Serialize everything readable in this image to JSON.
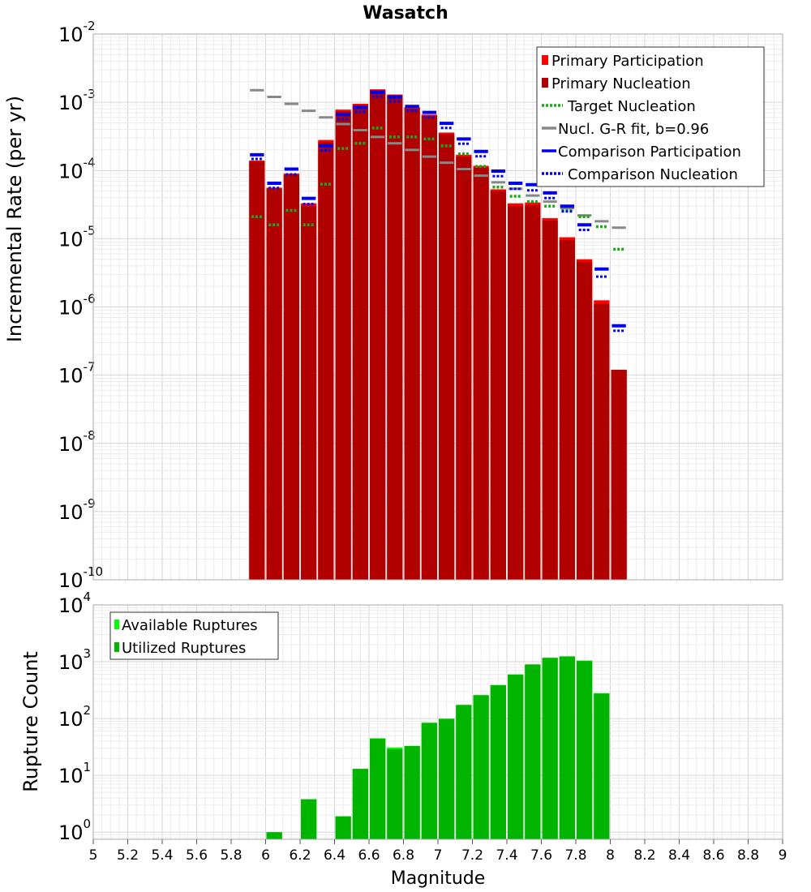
{
  "title": "Wasatch",
  "xlabel": "Magnitude",
  "colors": {
    "primary_participation": "#ff0000",
    "primary_nucleation": "#b00000",
    "target_nucleation": "#1aaa1a",
    "gr_fit": "#888888",
    "gr_fit_inner": "#222222",
    "comparison": "#0000ee",
    "available": "#00ff00",
    "utilized": "#00b400"
  },
  "x_axis": {
    "xlim": [
      5,
      9
    ],
    "ticks": [
      "5",
      "5.2",
      "5.4",
      "5.6",
      "5.8",
      "6",
      "6.2",
      "6.4",
      "6.6",
      "6.8",
      "7",
      "7.2",
      "7.4",
      "7.6",
      "7.8",
      "8",
      "8.2",
      "8.4",
      "8.6",
      "8.8",
      "9"
    ]
  },
  "chart_data": [
    {
      "type": "bar",
      "ylabel": "Incremental Rate (per yr)",
      "yscale": "log",
      "ylim": [
        1e-10,
        0.01
      ],
      "y_ticks": [
        {
          "base": "10",
          "exp": "-10"
        },
        {
          "base": "10",
          "exp": "-9"
        },
        {
          "base": "10",
          "exp": "-8"
        },
        {
          "base": "10",
          "exp": "-7"
        },
        {
          "base": "10",
          "exp": "-6"
        },
        {
          "base": "10",
          "exp": "-5"
        },
        {
          "base": "10",
          "exp": "-4"
        },
        {
          "base": "10",
          "exp": "-3"
        },
        {
          "base": "10",
          "exp": "-2"
        }
      ],
      "legend": [
        {
          "label": "Primary Participation",
          "key": "primary_participation",
          "style": "box"
        },
        {
          "label": "Primary Nucleation",
          "key": "primary_nucleation",
          "style": "box"
        },
        {
          "label": "Target Nucleation",
          "key": "target_nucleation",
          "style": "dotted"
        },
        {
          "label": "Nucl. G-R fit, b=0.96",
          "key": "gr_fit",
          "style": "solid"
        },
        {
          "label": "Comparison Participation",
          "key": "comparison",
          "style": "solid"
        },
        {
          "label": "Comparison Nucleation",
          "key": "comparison",
          "style": "dotted"
        }
      ],
      "bin_width": 0.1,
      "x": [
        5.95,
        6.05,
        6.15,
        6.25,
        6.35,
        6.45,
        6.55,
        6.65,
        6.75,
        6.85,
        6.95,
        7.05,
        7.15,
        7.25,
        7.35,
        7.45,
        7.55,
        7.65,
        7.75,
        7.85,
        7.95,
        8.05
      ],
      "series": [
        {
          "name": "Primary Participation",
          "values": [
            0.00014,
            5.6e-05,
            9e-05,
            3.3e-05,
            0.00028,
            0.00078,
            0.00095,
            0.00155,
            0.0013,
            0.00085,
            0.00066,
            0.00036,
            0.00017,
            0.000117,
            5.3e-05,
            3.3e-05,
            3.4e-05,
            2e-05,
            1.05e-05,
            5e-06,
            1.25e-06,
            1.2e-07
          ]
        },
        {
          "name": "Primary Nucleation",
          "values": [
            0.000135,
            5.4e-05,
            8.6e-05,
            3e-05,
            0.00026,
            0.00073,
            0.0009,
            0.0015,
            0.00125,
            0.00081,
            0.00063,
            0.00034,
            0.00016,
            0.00011,
            5e-05,
            3e-05,
            3.1e-05,
            1.85e-05,
            9.5e-06,
            4.6e-06,
            1.1e-06,
            1.2e-07
          ]
        },
        {
          "name": "Target Nucleation",
          "values": [
            2.1e-05,
            1.6e-05,
            2.6e-05,
            1.6e-05,
            6.3e-05,
            0.00021,
            0.00025,
            0.00042,
            0.00031,
            0.00031,
            0.00029,
            0.00023,
            0.000175,
            0.000115,
            5.7e-05,
            4.2e-05,
            3.5e-05,
            3e-05,
            2.6e-05,
            2.1e-05,
            1.5e-05,
            7e-06
          ]
        },
        {
          "name": "Nucl. G-R fit, b=0.96",
          "values": [
            0.0015,
            0.0012,
            0.00095,
            0.00075,
            0.0006,
            0.00048,
            0.00039,
            0.00031,
            0.00025,
            0.0002,
            0.00016,
            0.00013,
            0.000105,
            8.4e-05,
            6.7e-05,
            5.4e-05,
            4.3e-05,
            3.5e-05,
            2.8e-05,
            2.2e-05,
            1.8e-05,
            1.45e-05
          ]
        },
        {
          "name": "Comparison Participation",
          "values": [
            0.00017,
            6.5e-05,
            0.000105,
            3.9e-05,
            0.00023,
            0.00066,
            0.00084,
            0.0014,
            0.0012,
            0.00087,
            0.00071,
            0.00049,
            0.00029,
            0.00019,
            9.8e-05,
            6.5e-05,
            6.2e-05,
            4.7e-05,
            3e-05,
            1.6e-05,
            3.6e-06,
            5.3e-07
          ]
        },
        {
          "name": "Comparison Nucleation",
          "values": [
            0.000165,
            6.2e-05,
            9.8e-05,
            3.6e-05,
            0.00022,
            0.00063,
            0.00081,
            0.00135,
            0.00115,
            0.00084,
            0.00068,
            0.00047,
            0.000275,
            0.00018,
            9.2e-05,
            6e-05,
            5.7e-05,
            4.4e-05,
            2.8e-05,
            1.5e-05,
            3.1e-06,
            5e-07
          ]
        }
      ]
    },
    {
      "type": "bar",
      "ylabel": "Rupture Count",
      "yscale": "log",
      "ylim": [
        0.75,
        10000
      ],
      "y_ticks": [
        {
          "base": "10",
          "exp": "0"
        },
        {
          "base": "10",
          "exp": "1"
        },
        {
          "base": "10",
          "exp": "2"
        },
        {
          "base": "10",
          "exp": "3"
        },
        {
          "base": "10",
          "exp": "4"
        }
      ],
      "legend": [
        {
          "label": "Available Ruptures",
          "key": "available",
          "style": "box"
        },
        {
          "label": "Utilized Ruptures",
          "key": "utilized",
          "style": "box"
        }
      ],
      "bin_width": 0.1,
      "x": [
        6.05,
        6.15,
        6.25,
        6.35,
        6.45,
        6.55,
        6.65,
        6.75,
        6.85,
        6.95,
        7.05,
        7.15,
        7.25,
        7.35,
        7.45,
        7.55,
        7.65,
        7.75,
        7.85,
        7.95
      ],
      "series": [
        {
          "name": "Available Ruptures",
          "values": [
            1,
            0,
            3.8,
            0,
            1.9,
            13,
            45,
            31,
            33,
            85,
            100,
            175,
            260,
            390,
            600,
            900,
            1180,
            1250,
            1050,
            280
          ]
        },
        {
          "name": "Utilized Ruptures",
          "values": [
            1,
            0,
            3.8,
            0,
            1.9,
            13,
            44,
            29,
            33,
            83,
            98,
            172,
            255,
            385,
            590,
            890,
            1160,
            1230,
            1030,
            275
          ]
        }
      ]
    }
  ]
}
